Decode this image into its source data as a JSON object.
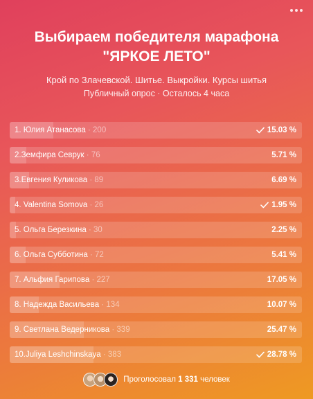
{
  "poll": {
    "title_line1": "Выбираем победителя марафона",
    "title_line2": "\"ЯРКОЕ ЛЕТО\"",
    "subtitle": "Крой по Злачевской. Шитье. Выкройки. Курсы шитья",
    "meta": "Публичный опрос · Осталось 4 часа",
    "options": [
      {
        "label": "1. Юлия Атанасова",
        "count": "200",
        "pct": "15.03 %",
        "fraction": 0.1503,
        "checked": true
      },
      {
        "label": "2.Земфира Севрук",
        "count": "76",
        "pct": "5.71 %",
        "fraction": 0.0571,
        "checked": false
      },
      {
        "label": "3.Евгения Куликова",
        "count": "89",
        "pct": "6.69 %",
        "fraction": 0.0669,
        "checked": false
      },
      {
        "label": "4. Valentina Somova",
        "count": "26",
        "pct": "1.95 %",
        "fraction": 0.0195,
        "checked": true
      },
      {
        "label": "5. Ольга Березкина",
        "count": "30",
        "pct": "2.25 %",
        "fraction": 0.0225,
        "checked": false
      },
      {
        "label": "6. Ольга Субботина",
        "count": "72",
        "pct": "5.41 %",
        "fraction": 0.0541,
        "checked": false
      },
      {
        "label": "7. Альфия Гарипова",
        "count": "227",
        "pct": "17.05 %",
        "fraction": 0.1705,
        "checked": false
      },
      {
        "label": "8. Надежда Васильева",
        "count": "134",
        "pct": "10.07 %",
        "fraction": 0.1007,
        "checked": false
      },
      {
        "label": "9. Светлана Ведерникова",
        "count": "339",
        "pct": "25.47 %",
        "fraction": 0.2547,
        "checked": false
      },
      {
        "label": "10.Juliya Leshchinskaya",
        "count": "383",
        "pct": "28.78 %",
        "fraction": 0.2878,
        "checked": true
      }
    ],
    "footer": {
      "voted_prefix": "Проголосовал",
      "voted_count": "1 331",
      "voted_suffix": "человек"
    }
  },
  "icons": {
    "more": "more-horizontal-icon",
    "check": "check-icon"
  },
  "colors": {
    "gradient_top": "#e0405c",
    "gradient_bottom": "#ee9a22"
  }
}
